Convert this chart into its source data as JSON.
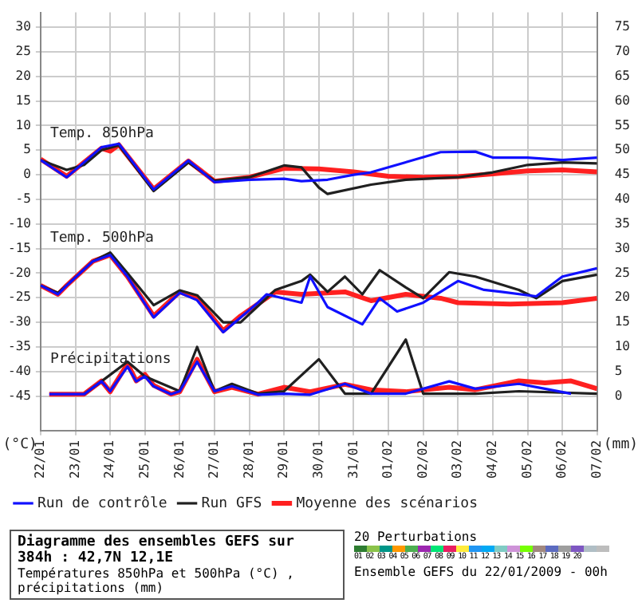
{
  "chart_data": {
    "type": "line",
    "title": "Diagramme des ensembles GEFS sur 384h : 42,7N 12,1E",
    "subtitle": "Températures 850hPa et 500hPa (°C) , précipitations (mm)",
    "ylabel": "(°C)",
    "y2label": "(mm)",
    "annotations": [
      "Temp. 850hPa",
      "Temp. 500hPa",
      "Précipitations",
      "20 Perturbations",
      "01 02 03 04 05 06 07 08 09 10 11 12 13 14 15 16 17 18 19 20",
      "Ensemble GEFS du 22/01/2009 - 00h"
    ],
    "xlim": [
      "2009-01-22",
      "2009-02-07"
    ],
    "xticks": [
      {
        "value": "2009-01-22",
        "label": "22/01"
      },
      {
        "value": "2009-01-23",
        "label": "23/01"
      },
      {
        "value": "2009-01-24",
        "label": "24/01"
      },
      {
        "value": "2009-01-25",
        "label": "25/01"
      },
      {
        "value": "2009-01-26",
        "label": "26/01"
      },
      {
        "value": "2009-01-27",
        "label": "27/01"
      },
      {
        "value": "2009-01-28",
        "label": "28/01"
      },
      {
        "value": "2009-01-29",
        "label": "29/01"
      },
      {
        "value": "2009-01-30",
        "label": "30/01"
      },
      {
        "value": "2009-01-31",
        "label": "31/01"
      },
      {
        "value": "2009-02-01",
        "label": "01/02"
      },
      {
        "value": "2009-02-02",
        "label": "02/02"
      },
      {
        "value": "2009-02-03",
        "label": "03/02"
      },
      {
        "value": "2009-02-04",
        "label": "04/02"
      },
      {
        "value": "2009-02-05",
        "label": "05/02"
      },
      {
        "value": "2009-02-06",
        "label": "06/02"
      },
      {
        "value": "2009-02-07",
        "label": "07/02"
      }
    ],
    "ylim": [
      -52,
      33
    ],
    "yticks": [
      -45,
      -40,
      -35,
      -30,
      -25,
      -20,
      -15,
      -10,
      -5,
      0,
      5,
      10,
      15,
      20,
      25,
      30
    ],
    "y2lim": [
      -7,
      78
    ],
    "y2ticks": [
      0,
      5,
      10,
      15,
      20,
      25,
      30,
      35,
      40,
      45,
      50,
      55,
      60,
      65,
      70,
      75
    ],
    "grid": true,
    "legend": "bottom",
    "marker": "none",
    "line_style": "solid",
    "series": [
      {
        "name": "Moyenne des scénarios",
        "color": "#ff2020",
        "x": [
          "2009-01-22T00:00",
          "2009-01-22T18:00",
          "2009-01-23T18:00",
          "2009-01-24T00:00",
          "2009-01-24T06:00",
          "2009-01-25T06:00",
          "2009-01-26T06:00",
          "2009-01-27T00:00",
          "2009-01-28T00:00",
          "2009-01-29T00:00",
          "2009-01-30T00:00",
          "2009-01-31T00:00",
          "2009-02-01T00:00",
          "2009-02-02T00:00",
          "2009-02-03T00:00",
          "2009-02-04T00:00",
          "2009-02-05T00:00",
          "2009-02-06T00:00",
          "2009-02-07T00:00"
        ],
        "values": [
          3.2,
          -0.3,
          5.4,
          4.8,
          6.1,
          -2.9,
          2.8,
          -1.3,
          -0.5,
          1.3,
          1.2,
          0.6,
          -0.3,
          -0.5,
          -0.4,
          0.2,
          0.8,
          1.0,
          0.6
        ]
      },
      {
        "name": "Run de contrôle",
        "color": "#1010ff",
        "x": [
          "2009-01-22T00:00",
          "2009-01-22T18:00",
          "2009-01-23T18:00",
          "2009-01-24T06:00",
          "2009-01-25T06:00",
          "2009-01-26T06:00",
          "2009-01-27T00:00",
          "2009-01-28T00:00",
          "2009-01-29T00:00",
          "2009-01-29T12:00",
          "2009-01-30T06:00",
          "2009-01-31T00:00",
          "2009-01-31T12:00",
          "2009-02-02T12:00",
          "2009-02-03T12:00",
          "2009-02-04T00:00",
          "2009-02-05T00:00",
          "2009-02-06T00:00",
          "2009-02-07T00:00"
        ],
        "values": [
          3,
          -0.5,
          5.6,
          6.3,
          -3,
          2.9,
          -1.5,
          -1,
          -0.8,
          -1.3,
          -1,
          0,
          0.5,
          4.6,
          4.7,
          3.5,
          3.5,
          3,
          3.5
        ]
      },
      {
        "name": "Run GFS",
        "color": "#202020",
        "x": [
          "2009-01-22T00:00",
          "2009-01-22T18:00",
          "2009-01-23T06:00",
          "2009-01-23T18:00",
          "2009-01-24T06:00",
          "2009-01-25T06:00",
          "2009-01-26T06:00",
          "2009-01-27T00:00",
          "2009-01-28T00:00",
          "2009-01-29T00:00",
          "2009-01-29T12:00",
          "2009-01-30T00:00",
          "2009-01-30T06:00",
          "2009-01-31T12:00",
          "2009-02-01T12:00",
          "2009-02-03T00:00",
          "2009-02-04T00:00",
          "2009-02-05T00:00",
          "2009-02-06T00:00",
          "2009-02-07T00:00"
        ],
        "values": [
          3,
          1,
          2,
          5,
          6,
          -3.3,
          2.5,
          -1.2,
          -0.5,
          1.9,
          1.5,
          -2.6,
          -3.9,
          -2,
          -1,
          -0.5,
          0.5,
          2,
          2.5,
          2.3
        ]
      },
      {
        "color": "#ff2020",
        "x": [
          "2009-01-22T00:00",
          "2009-01-22T12:00",
          "2009-01-22T18:00",
          "2009-01-23T12:00",
          "2009-01-24T00:00",
          "2009-01-24T12:00",
          "2009-01-25T06:00",
          "2009-01-26T00:00",
          "2009-01-26T12:00",
          "2009-01-27T06:00",
          "2009-01-27T18:00",
          "2009-01-28T18:00",
          "2009-01-29T12:00",
          "2009-01-30T18:00",
          "2009-01-31T12:00",
          "2009-02-01T12:00",
          "2009-02-02T12:00",
          "2009-02-03T00:00",
          "2009-02-04T12:00",
          "2009-02-06T00:00",
          "2009-02-07T00:00"
        ],
        "values": [
          -22.5,
          -24.3,
          -22.5,
          -17.6,
          -16.3,
          -20.7,
          -28.7,
          -23.8,
          -25.1,
          -31.7,
          -28.7,
          -23.8,
          -24.3,
          -23.8,
          -25.6,
          -24.3,
          -25.1,
          -26,
          -26.3,
          -26,
          -25.1
        ]
      },
      {
        "color": "#1010ff",
        "x": [
          "2009-01-22T00:00",
          "2009-01-22T12:00",
          "2009-01-22T18:00",
          "2009-01-23T12:00",
          "2009-01-24T00:00",
          "2009-01-24T12:00",
          "2009-01-25T06:00",
          "2009-01-26T00:00",
          "2009-01-26T12:00",
          "2009-01-27T06:00",
          "2009-01-27T18:00",
          "2009-01-28T06:00",
          "2009-01-28T12:00",
          "2009-01-29T12:00",
          "2009-01-29T18:00",
          "2009-01-30T06:00",
          "2009-01-31T06:00",
          "2009-01-31T18:00",
          "2009-02-01T06:00",
          "2009-02-02T00:00",
          "2009-02-03T00:00",
          "2009-02-03T18:00",
          "2009-02-04T06:00",
          "2009-02-05T06:00",
          "2009-02-06T00:00",
          "2009-02-07T00:00"
        ],
        "values": [
          -22.5,
          -24.3,
          -22.5,
          -17.6,
          -16.3,
          -20.7,
          -29,
          -24,
          -25.5,
          -32,
          -29,
          -26,
          -24.3,
          -26,
          -20.7,
          -26.9,
          -30.4,
          -25.1,
          -27.8,
          -26,
          -21.6,
          -23.4,
          -23.8,
          -24.7,
          -20.7,
          -19
        ]
      },
      {
        "color": "#202020",
        "x": [
          "2009-01-22T00:00",
          "2009-01-22T12:00",
          "2009-01-22T18:00",
          "2009-01-23T12:00",
          "2009-01-24T00:00",
          "2009-01-24T12:00",
          "2009-01-25T06:00",
          "2009-01-26T00:00",
          "2009-01-26T12:00",
          "2009-01-27T06:00",
          "2009-01-27T18:00",
          "2009-01-28T18:00",
          "2009-01-29T12:00",
          "2009-01-29T18:00",
          "2009-01-30T06:00",
          "2009-01-30T18:00",
          "2009-01-31T06:00",
          "2009-01-31T18:00",
          "2009-02-01T12:00",
          "2009-02-02T00:00",
          "2009-02-02T18:00",
          "2009-02-03T12:00",
          "2009-02-04T18:00",
          "2009-02-05T06:00",
          "2009-02-06T00:00",
          "2009-02-07T00:00"
        ],
        "values": [
          -22.5,
          -24,
          -22.5,
          -17.6,
          -15.8,
          -20,
          -26.5,
          -23.5,
          -24.5,
          -30,
          -30,
          -23.4,
          -21.6,
          -20.3,
          -23.8,
          -20.7,
          -24.3,
          -19.4,
          -22.9,
          -25.1,
          -19.8,
          -20.7,
          -23.4,
          -25.1,
          -21.6,
          -20.3
        ]
      },
      {
        "color": "#ff2020",
        "axis": "y2",
        "x": [
          "2009-01-22T06:00",
          "2009-01-23T06:00",
          "2009-01-23T18:00",
          "2009-01-24T00:00",
          "2009-01-24T12:00",
          "2009-01-24T18:00",
          "2009-01-25T00:00",
          "2009-01-25T06:00",
          "2009-01-25T18:00",
          "2009-01-26T00:00",
          "2009-01-26T12:00",
          "2009-01-27T00:00",
          "2009-01-27T12:00",
          "2009-01-28T06:00",
          "2009-01-29T00:00",
          "2009-01-29T18:00",
          "2009-01-30T18:00",
          "2009-01-31T12:00",
          "2009-02-01T12:00",
          "2009-02-02T18:00",
          "2009-02-03T12:00",
          "2009-02-04T18:00",
          "2009-02-05T12:00",
          "2009-02-06T06:00",
          "2009-02-07T00:00"
        ],
        "values": [
          0.4,
          0.4,
          3.1,
          0.9,
          6.6,
          3.1,
          4.4,
          2.2,
          0.4,
          0.9,
          7.5,
          0.9,
          1.8,
          0.4,
          1.8,
          0.9,
          2.4,
          1.3,
          0.9,
          1.8,
          1.3,
          3.1,
          2.7,
          3.1,
          1.5
        ]
      },
      {
        "color": "#1010ff",
        "axis": "y2",
        "x": [
          "2009-01-22T06:00",
          "2009-01-23T06:00",
          "2009-01-23T18:00",
          "2009-01-24T00:00",
          "2009-01-24T12:00",
          "2009-01-24T18:00",
          "2009-01-25T00:00",
          "2009-01-25T06:00",
          "2009-01-25T18:00",
          "2009-01-26T00:00",
          "2009-01-26T12:00",
          "2009-01-27T00:00",
          "2009-01-27T12:00",
          "2009-01-28T06:00",
          "2009-01-29T00:00",
          "2009-01-29T18:00",
          "2009-01-30T18:00",
          "2009-01-31T12:00",
          "2009-02-01T12:00",
          "2009-02-02T18:00",
          "2009-02-03T12:00",
          "2009-02-04T18:00",
          "2009-02-05T12:00",
          "2009-02-06T06:00"
        ],
        "values": [
          0.4,
          0.4,
          3,
          1,
          6,
          3,
          4,
          2,
          0.4,
          1,
          7,
          1,
          2,
          0.3,
          0.5,
          0.3,
          2.5,
          0.5,
          0.5,
          3,
          1.5,
          2.5,
          1.5,
          0.5
        ]
      },
      {
        "color": "#202020",
        "axis": "y2",
        "x": [
          "2009-01-23T06:00",
          "2009-01-23T18:00",
          "2009-01-24T12:00",
          "2009-01-25T00:00",
          "2009-01-26T00:00",
          "2009-01-26T12:00",
          "2009-01-27T00:00",
          "2009-01-27T12:00",
          "2009-01-28T06:00",
          "2009-01-29T00:00",
          "2009-01-30T00:00",
          "2009-01-30T18:00",
          "2009-01-31T12:00",
          "2009-02-01T12:00",
          "2009-02-02T00:00",
          "2009-02-03T12:00",
          "2009-02-04T18:00",
          "2009-02-07T00:00"
        ],
        "values": [
          0.4,
          3,
          7,
          4,
          1,
          10,
          1,
          2.5,
          0.5,
          1,
          7.5,
          0.5,
          0.5,
          11.5,
          0.5,
          0.5,
          1,
          0.5
        ]
      }
    ]
  }
}
